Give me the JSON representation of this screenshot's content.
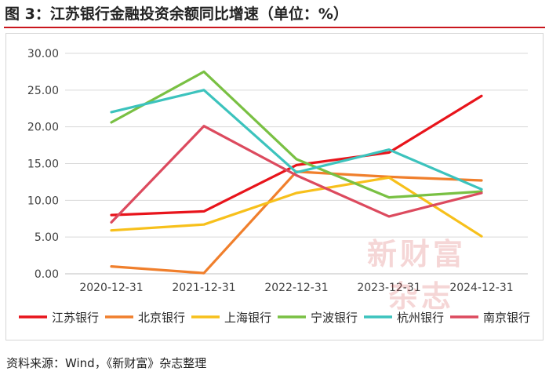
{
  "figure": {
    "title": "图 3：江苏银行金融投资余额同比增速（单位：%）",
    "source": "资料来源：Wind，《新财富》杂志整理",
    "watermark_line1": "新财富",
    "watermark_line2": "杂志"
  },
  "chart_data": {
    "type": "line",
    "categories": [
      "2020-12-31",
      "2021-12-31",
      "2022-12-31",
      "2023-12-31",
      "2024-12-31"
    ],
    "ylim": [
      0,
      30
    ],
    "yticks": [
      "0.00",
      "5.00",
      "10.00",
      "15.00",
      "20.00",
      "25.00",
      "30.00"
    ],
    "grid": true,
    "legend": "bottom",
    "series": [
      {
        "name": "江苏银行",
        "color": "#e8141b",
        "values": [
          8.0,
          8.5,
          14.8,
          16.5,
          24.2
        ]
      },
      {
        "name": "北京银行",
        "color": "#f07f2c",
        "values": [
          1.0,
          0.1,
          13.9,
          13.2,
          12.7
        ]
      },
      {
        "name": "上海银行",
        "color": "#f7c01b",
        "values": [
          5.9,
          6.7,
          11.0,
          13.1,
          5.1
        ]
      },
      {
        "name": "宁波银行",
        "color": "#79c043",
        "values": [
          20.6,
          27.5,
          15.6,
          10.4,
          11.2
        ]
      },
      {
        "name": "杭州银行",
        "color": "#3cc3bd",
        "values": [
          22.0,
          25.0,
          13.8,
          16.9,
          11.5
        ]
      },
      {
        "name": "南京银行",
        "color": "#dc4a5e",
        "values": [
          7.0,
          20.1,
          13.4,
          7.8,
          11.0
        ]
      }
    ]
  }
}
